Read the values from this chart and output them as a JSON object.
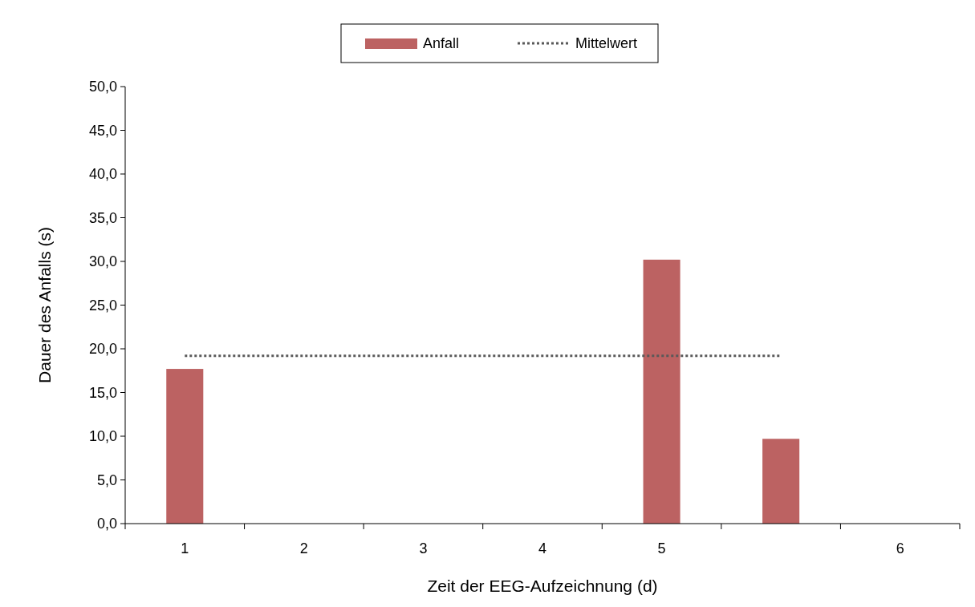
{
  "chart_data": {
    "type": "bar",
    "xlabel": "Zeit der EEG-Aufzeichnung (d)",
    "ylabel": "Dauer des Anfalls (s)",
    "categories": [
      "1",
      "2",
      "3",
      "4",
      "5",
      null,
      "6"
    ],
    "series": [
      {
        "name": "Anfall",
        "color": "#bc6262",
        "values": [
          17.7,
          null,
          null,
          null,
          30.2,
          9.7,
          null
        ]
      },
      {
        "name": "Mittelwert",
        "type": "line",
        "color": "#595959",
        "line_style": "dotted",
        "marker": "none",
        "values": [
          19.2,
          19.2,
          19.2,
          19.2,
          19.2,
          19.2,
          null
        ]
      }
    ],
    "ylim": [
      0,
      50
    ],
    "yticks": [
      {
        "value": 0,
        "label": "0,0"
      },
      {
        "value": 5,
        "label": "5,0"
      },
      {
        "value": 10,
        "label": "10,0"
      },
      {
        "value": 15,
        "label": "15,0"
      },
      {
        "value": 20,
        "label": "20,0"
      },
      {
        "value": 25,
        "label": "25,0"
      },
      {
        "value": 30,
        "label": "30,0"
      },
      {
        "value": 35,
        "label": "35,0"
      },
      {
        "value": 40,
        "label": "40,0"
      },
      {
        "value": 45,
        "label": "45,0"
      },
      {
        "value": 50,
        "label": "50,0"
      }
    ],
    "grid": false,
    "legend": "top"
  }
}
